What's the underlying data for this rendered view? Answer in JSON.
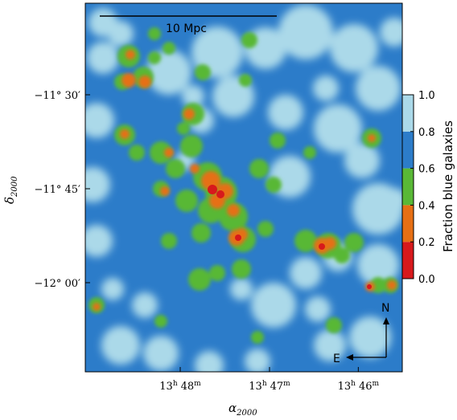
{
  "chart_data": {
    "type": "heatmap",
    "title": "",
    "xlabel_main": "α",
    "xlabel_sub": "2000",
    "ylabel_main": "δ",
    "ylabel_sub": "2000",
    "x_ticks": [
      {
        "hours": "13",
        "minutes": "48",
        "value_hours": 13.8
      },
      {
        "hours": "13",
        "minutes": "47",
        "value_hours": 13.7833
      },
      {
        "hours": "13",
        "minutes": "46",
        "value_hours": 13.7667
      }
    ],
    "y_ticks": [
      {
        "deg": "−11°",
        "arcmin": "30′",
        "value_deg": -11.5
      },
      {
        "deg": "−11°",
        "arcmin": "45′",
        "value_deg": -11.75
      },
      {
        "deg": "−12°",
        "arcmin": "00′",
        "value_deg": -12.0
      }
    ],
    "colorbar": {
      "label": "Fraction blue galaxies",
      "range": [
        0.0,
        1.0
      ],
      "ticks": [
        "0.0",
        "0.2",
        "0.4",
        "0.6",
        "0.8",
        "1.0"
      ],
      "levels": [
        {
          "from": 0.0,
          "to": 0.2,
          "color": "#d7191c"
        },
        {
          "from": 0.2,
          "to": 0.4,
          "color": "#e66f14"
        },
        {
          "from": 0.4,
          "to": 0.6,
          "color": "#59b836"
        },
        {
          "from": 0.6,
          "to": 0.8,
          "color": "#2c7cc9"
        },
        {
          "from": 0.8,
          "to": 1.0,
          "color": "#abd9e9"
        }
      ]
    },
    "scale_bar": {
      "label": "10 Mpc"
    },
    "compass": {
      "north": "N",
      "east": "E"
    },
    "grid": false
  }
}
